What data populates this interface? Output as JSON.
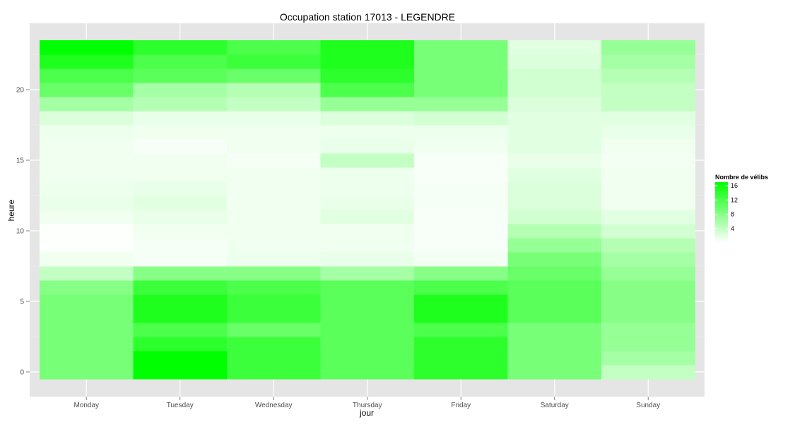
{
  "chart_data": {
    "type": "heatmap",
    "title": "Occupation station 17013 - LEGENDRE",
    "xlabel": "jour",
    "ylabel": "heure",
    "categories": [
      "Monday",
      "Tuesday",
      "Wednesday",
      "Thursday",
      "Friday",
      "Saturday",
      "Sunday"
    ],
    "hours": [
      0,
      1,
      2,
      3,
      4,
      5,
      6,
      7,
      8,
      9,
      10,
      11,
      12,
      13,
      14,
      15,
      16,
      17,
      18,
      19,
      20,
      21,
      22,
      23
    ],
    "y_ticks": [
      0,
      5,
      10,
      15,
      20
    ],
    "ylim": [
      -0.5,
      23.5
    ],
    "grid": true,
    "colors": {
      "low": "#ffffff",
      "high": "#00ff00",
      "panel": "#e5e5e5",
      "grid": "#ffffff"
    },
    "legend": {
      "title": "Nombre de vélibs",
      "position": "right",
      "breaks": [
        4,
        8,
        12,
        16
      ],
      "range": [
        0,
        17
      ]
    },
    "values": [
      [
        9,
        17,
        13,
        11,
        14,
        9,
        4
      ],
      [
        9,
        17,
        13,
        11,
        14,
        9,
        6
      ],
      [
        9,
        14,
        13,
        11,
        14,
        9,
        7
      ],
      [
        9,
        12,
        10,
        11,
        12,
        9,
        7
      ],
      [
        9,
        15,
        13,
        11,
        15,
        11,
        8
      ],
      [
        9,
        15,
        13,
        11,
        15,
        11,
        8
      ],
      [
        8,
        13,
        12,
        11,
        12,
        11,
        8
      ],
      [
        4,
        8,
        8,
        6,
        8,
        10,
        7
      ],
      [
        1,
        0.6,
        1.2,
        1.5,
        0.8,
        9,
        6
      ],
      [
        0.2,
        0.6,
        1,
        1,
        0.5,
        7,
        5
      ],
      [
        0.2,
        1,
        1,
        1,
        0.5,
        5,
        3
      ],
      [
        1,
        1.5,
        1,
        2,
        0.5,
        3,
        2
      ],
      [
        1.5,
        2,
        1,
        1.5,
        0.6,
        2.5,
        1
      ],
      [
        1.2,
        1.5,
        1,
        1.2,
        0.6,
        2.5,
        1
      ],
      [
        1,
        1,
        1,
        1.2,
        0.5,
        2,
        1
      ],
      [
        1,
        1,
        0.6,
        4,
        0.5,
        1.5,
        0.8
      ],
      [
        1,
        0.5,
        1,
        1.5,
        1,
        2,
        1
      ],
      [
        1.2,
        1,
        1,
        1.2,
        1.2,
        2,
        1.5
      ],
      [
        2.5,
        1.5,
        1.5,
        2.5,
        3,
        2,
        2
      ],
      [
        6,
        5,
        4,
        7,
        7,
        2.5,
        4
      ],
      [
        10,
        6,
        5,
        12,
        9,
        3,
        4
      ],
      [
        12,
        11,
        10,
        14,
        9,
        3,
        5
      ],
      [
        15,
        12,
        13,
        15,
        9,
        2.5,
        6
      ],
      [
        17,
        14,
        12,
        15,
        9,
        2,
        7
      ]
    ]
  }
}
